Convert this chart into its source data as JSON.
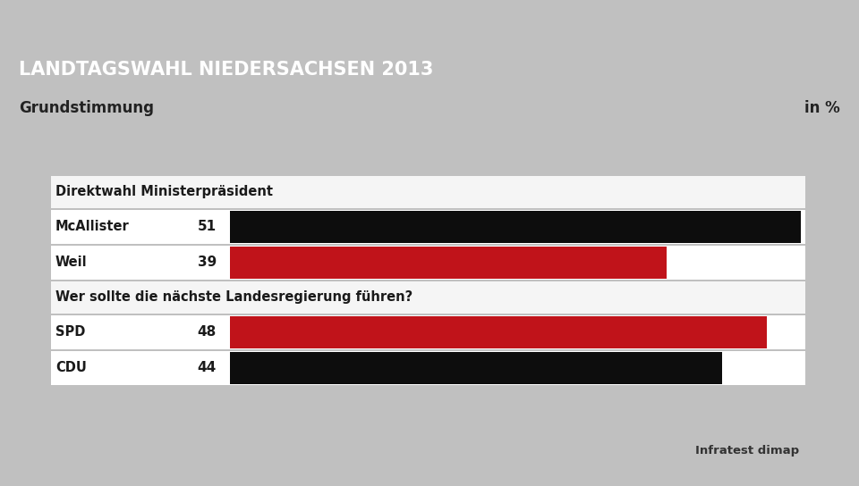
{
  "title": "LANDTAGSWAHL NIEDERSACHSEN 2013",
  "subtitle": "Grundstimmung",
  "subtitle_right": "in %",
  "title_bg_color": "#1a3f7a",
  "subtitle_bg_color": "#e8e8e8",
  "background_color": "#c0c0c0",
  "panel_bg_color": "#f5f5f5",
  "source": "Infratest dimap",
  "section1_title": "Direktwahl Ministerpräsident",
  "section2_title": "Wer sollte die nächste Landesregierung führen?",
  "bars": [
    {
      "label": "McAllister",
      "value": 51,
      "color": "#0d0d0d"
    },
    {
      "label": "Weil",
      "value": 39,
      "color": "#c0131a"
    },
    {
      "label": "SPD",
      "value": 48,
      "color": "#c0131a"
    },
    {
      "label": "CDU",
      "value": 44,
      "color": "#0d0d0d"
    }
  ],
  "max_value": 51,
  "fig_w": 9.6,
  "fig_h": 5.44,
  "dpi": 100
}
